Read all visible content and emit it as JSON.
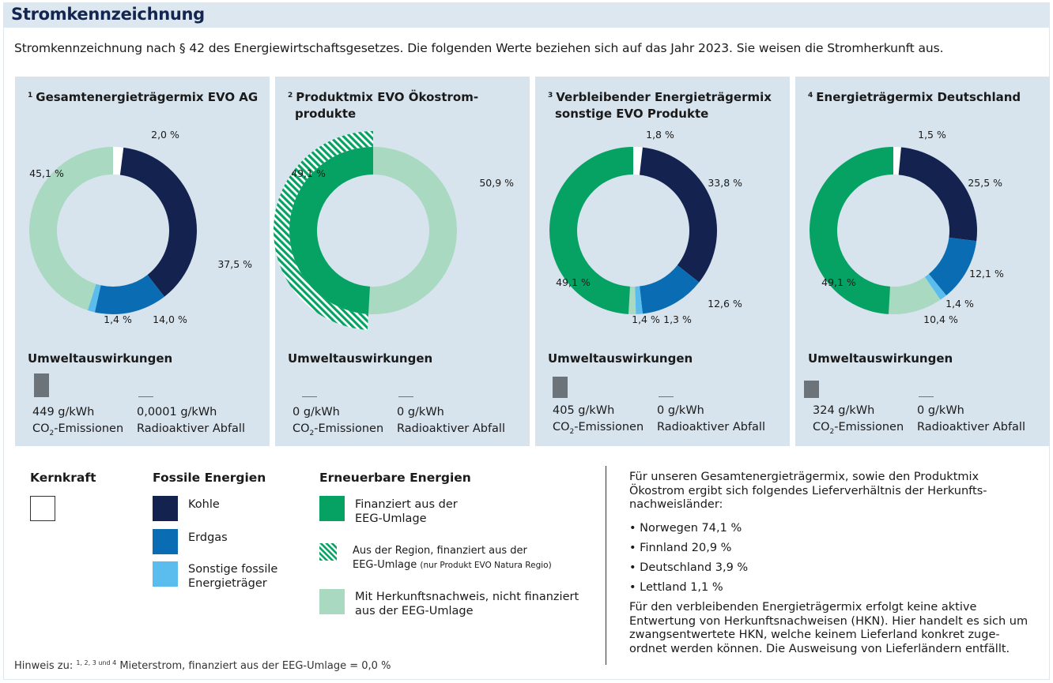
{
  "header": {
    "title": "Stromkennzeichnung"
  },
  "intro": "Stromkennzeichnung nach § 42 des Energiewirtschaftsgesetzes. Die folgenden Werte beziehen sich auf das Jahr 2023. Sie weisen die Stromherkunft aus.",
  "colors": {
    "kohle": "#14224f",
    "erdgas": "#0a6db3",
    "sonstige": "#5bbdee",
    "finanziert": "#06a264",
    "herkunft": "#a9d9c1",
    "kernkraft": "#ffffff",
    "panel": "#d7e4ee",
    "emission": "#6c747a"
  },
  "umwelt_heading": "Umweltauswirkungen",
  "chart_data": [
    {
      "type": "pie",
      "sup": "1",
      "title_lines": [
        "Gesamtenergieträgermix EVO AG"
      ],
      "segments": [
        {
          "name": "Kernkraft",
          "value": 2.0,
          "label": "2,0 %",
          "color": "kernkraft"
        },
        {
          "name": "Kohle",
          "value": 37.5,
          "label": "37,5 %",
          "color": "kohle"
        },
        {
          "name": "Erdgas",
          "value": 14.0,
          "label": "14,0 %",
          "color": "erdgas"
        },
        {
          "name": "Sonstige fossile Energieträger",
          "value": 1.4,
          "label": "1,4 %",
          "color": "sonstige"
        },
        {
          "name": "Mit Herkunftsnachweis, nicht finanziert aus der EEG-Umlage",
          "value": 45.1,
          "label": "45,1 %",
          "color": "herkunft"
        }
      ],
      "emissions": {
        "co2_value": "449 g/kWh",
        "co2_gkwh": 449,
        "waste_value": "0,0001 g/kWh"
      }
    },
    {
      "type": "pie",
      "sup": "2",
      "title_lines": [
        "Produktmix EVO Ökostrom-",
        "produkte"
      ],
      "segments": [
        {
          "name": "Mit Herkunftsnachweis, nicht finanziert aus der EEG-Umlage",
          "value": 50.9,
          "label": "50,9 %",
          "color": "herkunft"
        },
        {
          "name": "Finanziert aus der EEG-Umlage",
          "value": 49.1,
          "label": "49,1 %",
          "color": "finanziert",
          "regio_overlay": true
        }
      ],
      "emissions": {
        "co2_value": "0 g/kWh",
        "co2_gkwh": 0,
        "waste_value": "0 g/kWh"
      }
    },
    {
      "type": "pie",
      "sup": "3",
      "title_lines": [
        "Verbleibender Energieträgermix",
        "sonstige EVO Produkte"
      ],
      "segments": [
        {
          "name": "Kernkraft",
          "value": 1.8,
          "label": "1,8 %",
          "color": "kernkraft"
        },
        {
          "name": "Kohle",
          "value": 33.8,
          "label": "33,8 %",
          "color": "kohle"
        },
        {
          "name": "Erdgas",
          "value": 12.6,
          "label": "12,6 %",
          "color": "erdgas"
        },
        {
          "name": "Sonstige fossile Energieträger",
          "value": 1.3,
          "label": "1,3 %",
          "color": "sonstige"
        },
        {
          "name": "Mit Herkunftsnachweis, nicht finanziert aus der EEG-Umlage",
          "value": 1.4,
          "label": "1,4 %",
          "color": "herkunft"
        },
        {
          "name": "Finanziert aus der EEG-Umlage",
          "value": 49.1,
          "label": "49,1 %",
          "color": "finanziert"
        }
      ],
      "emissions": {
        "co2_value": "405 g/kWh",
        "co2_gkwh": 405,
        "waste_value": "0 g/kWh"
      }
    },
    {
      "type": "pie",
      "sup": "4",
      "title_lines": [
        "Energieträgermix Deutschland"
      ],
      "segments": [
        {
          "name": "Kernkraft",
          "value": 1.5,
          "label": "1,5 %",
          "color": "kernkraft"
        },
        {
          "name": "Kohle",
          "value": 25.5,
          "label": "25,5 %",
          "color": "kohle"
        },
        {
          "name": "Erdgas",
          "value": 12.1,
          "label": "12,1 %",
          "color": "erdgas"
        },
        {
          "name": "Sonstige fossile Energieträger",
          "value": 1.4,
          "label": "1,4 %",
          "color": "sonstige"
        },
        {
          "name": "Mit Herkunftsnachweis, nicht finanziert aus der EEG-Umlage",
          "value": 10.4,
          "label": "10,4 %",
          "color": "herkunft"
        },
        {
          "name": "Finanziert aus der EEG-Umlage",
          "value": 49.1,
          "label": "49,1 %",
          "color": "finanziert"
        }
      ],
      "emissions": {
        "co2_value": "324 g/kWh",
        "co2_gkwh": 324,
        "waste_value": "0 g/kWh"
      }
    }
  ],
  "emission_labels": {
    "co2_pre": "CO",
    "co2_sub": "2",
    "co2_post": "-Emissionen",
    "waste": "Radioaktiver Abfall"
  },
  "legend": {
    "kernkraft": {
      "heading": "Kernkraft"
    },
    "fossil": {
      "heading": "Fossile Energien",
      "kohle": "Kohle",
      "erdgas": "Erdgas",
      "sonstige_1": "Sonstige fossile",
      "sonstige_2": "Energieträger"
    },
    "erneuerbar": {
      "heading": "Erneuerbare Energien",
      "finanziert_1": "Finanziert aus der",
      "finanziert_2": "EEG-Umlage",
      "regio_1": "Aus der Region, finanziert aus der",
      "regio_2": "EEG-Umlage",
      "regio_note": "(nur Produkt EVO Natura Regio)",
      "herkunft_1": "Mit Herkunftsnachweis, nicht finanziert",
      "herkunft_2": "aus der EEG-Umlage"
    }
  },
  "right": {
    "para1": "Für unseren Gesamtenergieträgermix, sowie den Produktmix Ökostrom ergibt sich folgendes Lieferverhältnis der Herkunfts-nachweisländer:",
    "countries": [
      "• Norwegen 74,1 %",
      "• Finnland 20,9 %",
      "• Deutschland 3,9 %",
      "• Lettland 1,1 %"
    ],
    "para2": "Für den verbleibenden Energieträgermix erfolgt keine aktive Entwertung von Herkunftsnachweisen (HKN). Hier handelt es sich um zwangsentwertete HKN, welche keinem Lieferland konkret zuge-ordnet werden können. Die Ausweisung von Lieferländern entfällt."
  },
  "note": {
    "pre": "Hinweis zu:",
    "sup": "1, 2, 3 und 4",
    "text": "Mieterstrom, finanziert aus der EEG-Umlage = 0,0 %"
  }
}
